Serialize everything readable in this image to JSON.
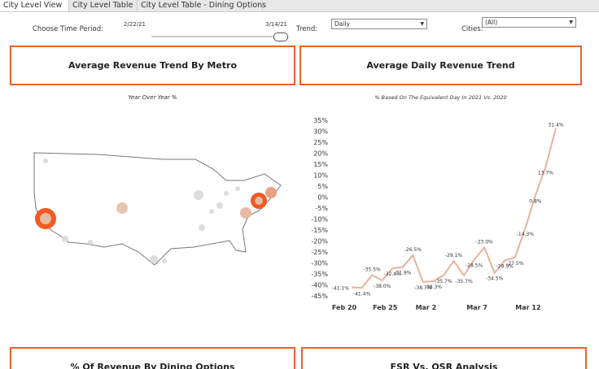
{
  "tabs": [
    "City Level View",
    "City Level Table",
    "City Level Table - Dining Options"
  ],
  "filters": {
    "time_label": "Choose Time Period:",
    "start": "2/22/21",
    "end": "3/14/21",
    "trend_label": "Trend:",
    "trend_value": "Daily",
    "cities_label": "Cities:",
    "cities_value": "(All)"
  },
  "panels": {
    "map_title": "Average Revenue Trend By Metro",
    "map_subtitle": "Year Over Year %",
    "dining_title": "% Of Revenue By Dining Options",
    "fsr_title": "FSR Vs. QSR Analysis"
  },
  "chart_data": {
    "type": "line",
    "title": "Average Daily Revenue Trend",
    "subtitle": "% Based On The Equivalent Day In 2021 Vs. 2020",
    "categories": [
      "Feb 20",
      null,
      null,
      null,
      "Feb 25",
      null,
      null,
      null,
      "Mar 2",
      null,
      null,
      null,
      null,
      "Mar 7",
      null,
      null,
      null,
      null,
      "Mar 12",
      null,
      null
    ],
    "values": [
      -41.1,
      -41.4,
      -35.5,
      -38.0,
      -32.4,
      -31.9,
      -26.5,
      -38.7,
      -38.3,
      -35.7,
      -29.1,
      -35.7,
      -28.5,
      -23.0,
      -34.5,
      -28.9,
      -27.5,
      -14.3,
      0.8,
      13.7,
      31.4
    ],
    "value_labels": [
      "-41.1%",
      "-41.4%",
      "-35.5%",
      "-38.0%",
      "-32.4%",
      "-31.9%",
      "-26.5%",
      "-38.7%",
      "-38.3%",
      "-35.7%",
      "-29.1%",
      "-35.7%",
      "-28.5%",
      "-23.0%",
      "-34.5%",
      "-28.9%",
      "-27.5%",
      "-14.3%",
      "0.8%",
      "13.7%",
      "31.4%"
    ],
    "color": "#e6b29c",
    "ylim": [
      -45,
      35
    ],
    "yticks": [
      {
        "value": 35,
        "label": "35%"
      },
      {
        "value": 30,
        "label": "30%"
      },
      {
        "value": 25,
        "label": "25%"
      },
      {
        "value": 20,
        "label": "20%"
      },
      {
        "value": 15,
        "label": "15%"
      },
      {
        "value": 10,
        "label": "10%"
      },
      {
        "value": 5,
        "label": "5%"
      },
      {
        "value": 0,
        "label": "0%"
      },
      {
        "value": -5,
        "label": "-5%"
      },
      {
        "value": -10,
        "label": "-10%"
      },
      {
        "value": -15,
        "label": "-15%"
      },
      {
        "value": -20,
        "label": "-20%"
      },
      {
        "value": -25,
        "label": "-25%"
      },
      {
        "value": -30,
        "label": "-30%"
      },
      {
        "value": -35,
        "label": "-35%"
      },
      {
        "value": -40,
        "label": "-40%"
      },
      {
        "value": -45,
        "label": "-45%"
      }
    ]
  }
}
